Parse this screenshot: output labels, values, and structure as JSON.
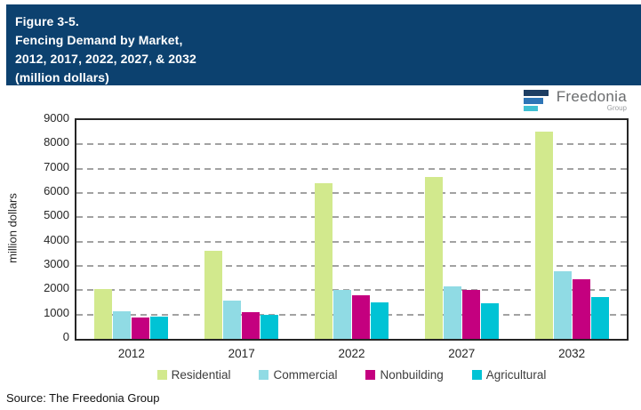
{
  "header": {
    "bg_color": "#0c416f",
    "title_lines": [
      "Figure 3-5.",
      "Fencing Demand by Market,",
      "2012, 2017, 2022, 2027, & 2032",
      "(million dollars)"
    ]
  },
  "logo": {
    "brand": "Freedonia",
    "sub": "Group",
    "icon_colors": [
      "#1d3e63",
      "#2e75b6",
      "#3fc0d3"
    ]
  },
  "chart_data": {
    "type": "bar",
    "title": "Fencing Demand by Market, 2012, 2017, 2022, 2027, & 2032 (million dollars)",
    "categories": [
      "2012",
      "2017",
      "2022",
      "2027",
      "2032"
    ],
    "series": [
      {
        "name": "Residential",
        "color": "#d2e98d",
        "values": [
          2050,
          3630,
          6390,
          6650,
          8520
        ]
      },
      {
        "name": "Commercial",
        "color": "#90dbe4",
        "values": [
          1130,
          1590,
          2020,
          2150,
          2790
        ]
      },
      {
        "name": "Nonbuilding",
        "color": "#c4007f",
        "values": [
          880,
          1110,
          1810,
          2010,
          2460
        ]
      },
      {
        "name": "Agricultural",
        "color": "#00c3d5",
        "values": [
          910,
          1000,
          1490,
          1450,
          1720
        ]
      }
    ],
    "xlabel": "",
    "ylabel": "million dollars",
    "ylim": [
      0,
      9000
    ],
    "ytick_step": 1000,
    "grid": "horizontal-dashed",
    "grid_color": "#a2a2a2",
    "legend_position": "bottom"
  },
  "source": {
    "text": "Source: The Freedonia Group"
  }
}
